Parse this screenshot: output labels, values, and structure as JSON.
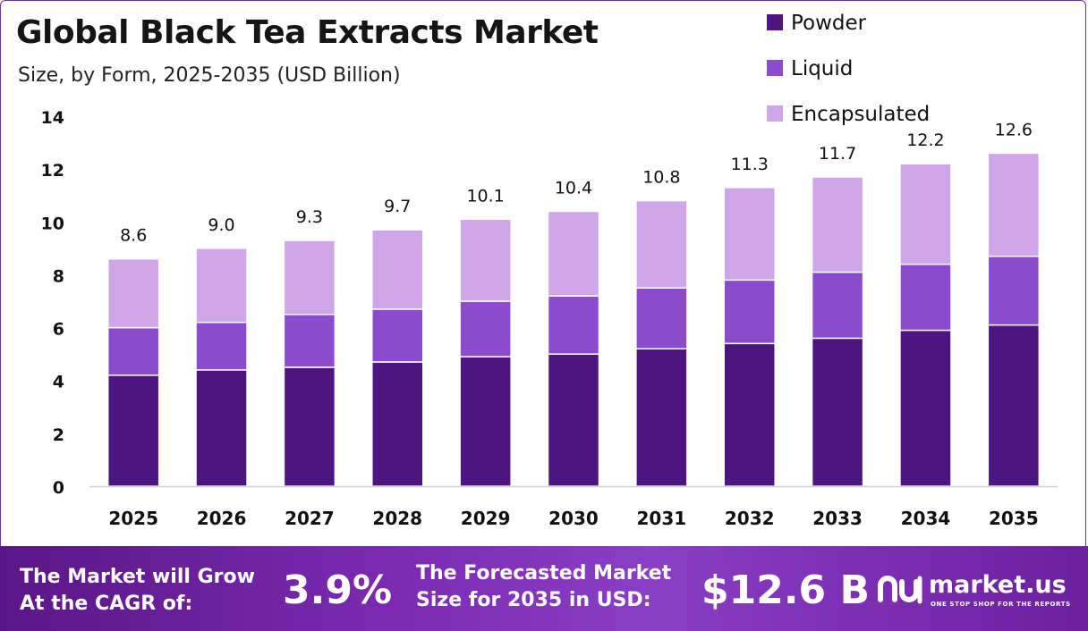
{
  "chart_data": {
    "type": "bar",
    "stacked": true,
    "title": "Global Black Tea Extracts Market",
    "subtitle": "Size, by Form, 2025-2035 (USD Billion)",
    "categories": [
      "2025",
      "2026",
      "2027",
      "2028",
      "2029",
      "2030",
      "2031",
      "2032",
      "2033",
      "2034",
      "2035"
    ],
    "series": [
      {
        "name": "Powder",
        "color": "#4d1580",
        "values": [
          4.2,
          4.4,
          4.5,
          4.7,
          4.9,
          5.0,
          5.2,
          5.4,
          5.6,
          5.9,
          6.1
        ]
      },
      {
        "name": "Liquid",
        "color": "#8a4bce",
        "values": [
          1.8,
          1.8,
          2.0,
          2.0,
          2.1,
          2.2,
          2.3,
          2.4,
          2.5,
          2.5,
          2.6
        ]
      },
      {
        "name": "Encapsulated",
        "color": "#cfa6ea",
        "values": [
          2.6,
          2.8,
          2.8,
          3.0,
          3.1,
          3.2,
          3.3,
          3.5,
          3.6,
          3.8,
          3.9
        ]
      }
    ],
    "totals": [
      "8.6",
      "9.0",
      "9.3",
      "9.7",
      "10.1",
      "10.4",
      "10.8",
      "11.3",
      "11.7",
      "12.2",
      "12.6"
    ],
    "ylim": [
      0,
      14
    ],
    "yticks": [
      0,
      2,
      4,
      6,
      8,
      10,
      12,
      14
    ],
    "xlabel": "",
    "ylabel": "",
    "legend_position": "top-right",
    "grid": false
  },
  "footer": {
    "cagr_label_line1": "The Market will Grow",
    "cagr_label_line2": "At the CAGR of:",
    "cagr_value": "3.9%",
    "size_label_line1": "The Forecasted Market",
    "size_label_line2": "Size for 2035 in USD:",
    "size_value": "$12.6 B",
    "logo_text": "market.us",
    "logo_tagline": "ONE STOP SHOP FOR THE REPORTS"
  }
}
